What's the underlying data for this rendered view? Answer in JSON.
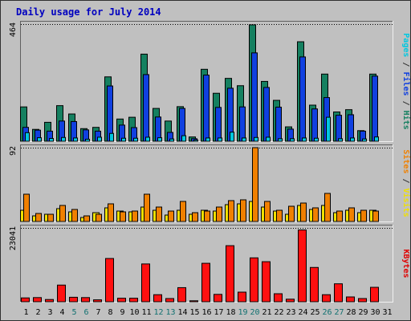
{
  "chart_data": {
    "type": "bar",
    "title": "Daily usage for July 2014",
    "categories": [
      "1",
      "2",
      "3",
      "4",
      "5",
      "6",
      "7",
      "8",
      "9",
      "10",
      "11",
      "12",
      "13",
      "14",
      "15",
      "16",
      "17",
      "18",
      "19",
      "20",
      "21",
      "22",
      "23",
      "24",
      "25",
      "26",
      "27",
      "28",
      "29",
      "30",
      "31"
    ],
    "weekend_days": [
      "5",
      "6",
      "12",
      "13",
      "19",
      "20",
      "26",
      "27"
    ],
    "panels": [
      {
        "id": "hits_files_pages",
        "ymax_label": "464",
        "ylim": [
          0,
          464
        ],
        "label_parts": [
          {
            "text": "Pages",
            "color": "#00c8e0"
          },
          {
            "text": " / ",
            "color": "#333333"
          },
          {
            "text": "Files",
            "color": "#1040e0"
          },
          {
            "text": " / ",
            "color": "#333333"
          },
          {
            "text": "Hits",
            "color": "#158060"
          }
        ],
        "series": [
          {
            "name": "Hits",
            "color": "#158060",
            "values": [
              136,
              47,
              75,
              141,
              108,
              50,
              55,
              255,
              88,
              95,
              345,
              130,
              80,
              137,
              17,
              285,
              190,
              249,
              220,
              461,
              237,
              162,
              57,
              394,
              143,
              266,
              116,
              125,
              42,
              266
            ]
          },
          {
            "name": "Files",
            "color": "#1040e0",
            "values": [
              55,
              44,
              40,
              80,
              78,
              45,
              40,
              219,
              64,
              54,
              264,
              96,
              35,
              130,
              10,
              262,
              134,
              210,
              136,
              350,
              213,
              135,
              48,
              334,
              128,
              173,
              103,
              105,
              40,
              258
            ]
          },
          {
            "name": "Pages",
            "color": "#00c8e0",
            "values": [
              34,
              14,
              11,
              15,
              13,
              8,
              16,
              31,
              12,
              12,
              16,
              14,
              9,
              22,
              5,
              13,
              13,
              36,
              13,
              15,
              16,
              10,
              10,
              13,
              12,
              95,
              10,
              13,
              9,
              17
            ]
          }
        ]
      },
      {
        "id": "visits_sites",
        "ymax_label": "92",
        "ylim": [
          0,
          92
        ],
        "label_parts": [
          {
            "text": "Sites",
            "color": "#f08000"
          },
          {
            "text": " / ",
            "color": "#333333"
          },
          {
            "text": "Visits",
            "color": "#f0e000"
          }
        ],
        "series": [
          {
            "name": "Visits",
            "color": "#f0e000",
            "values": [
              14,
              7,
              9,
              16,
              12,
              5,
              11,
              17,
              13,
              12,
              18,
              14,
              8,
              14,
              9,
              14,
              13,
              21,
              22,
              25,
              18,
              13,
              9,
              20,
              15,
              20,
              11,
              14,
              11,
              14
            ]
          },
          {
            "name": "Sites",
            "color": "#f08000",
            "values": [
              34,
              10,
              9,
              20,
              15,
              7,
              9,
              22,
              12,
              13,
              34,
              18,
              13,
              25,
              11,
              13,
              18,
              26,
              27,
              92,
              25,
              14,
              19,
              23,
              17,
              35,
              13,
              17,
              14,
              13
            ]
          }
        ]
      },
      {
        "id": "kbytes",
        "ymax_label": "23041",
        "ylim": [
          0,
          23041
        ],
        "label_parts": [
          {
            "text": "KBytes",
            "color": "#e00000"
          }
        ],
        "series": [
          {
            "name": "KBytes",
            "color": "#ff1010",
            "values": [
              1200,
              1300,
              700,
              5200,
              1400,
              1300,
              600,
              13500,
              1100,
              1100,
              11800,
              2200,
              1000,
              4400,
              300,
              12000,
              2300,
              17500,
              3000,
              13700,
              12500,
              2500,
              800,
              22400,
              10700,
              2200,
              5600,
              1500,
              1000,
              4500
            ]
          }
        ]
      }
    ]
  }
}
